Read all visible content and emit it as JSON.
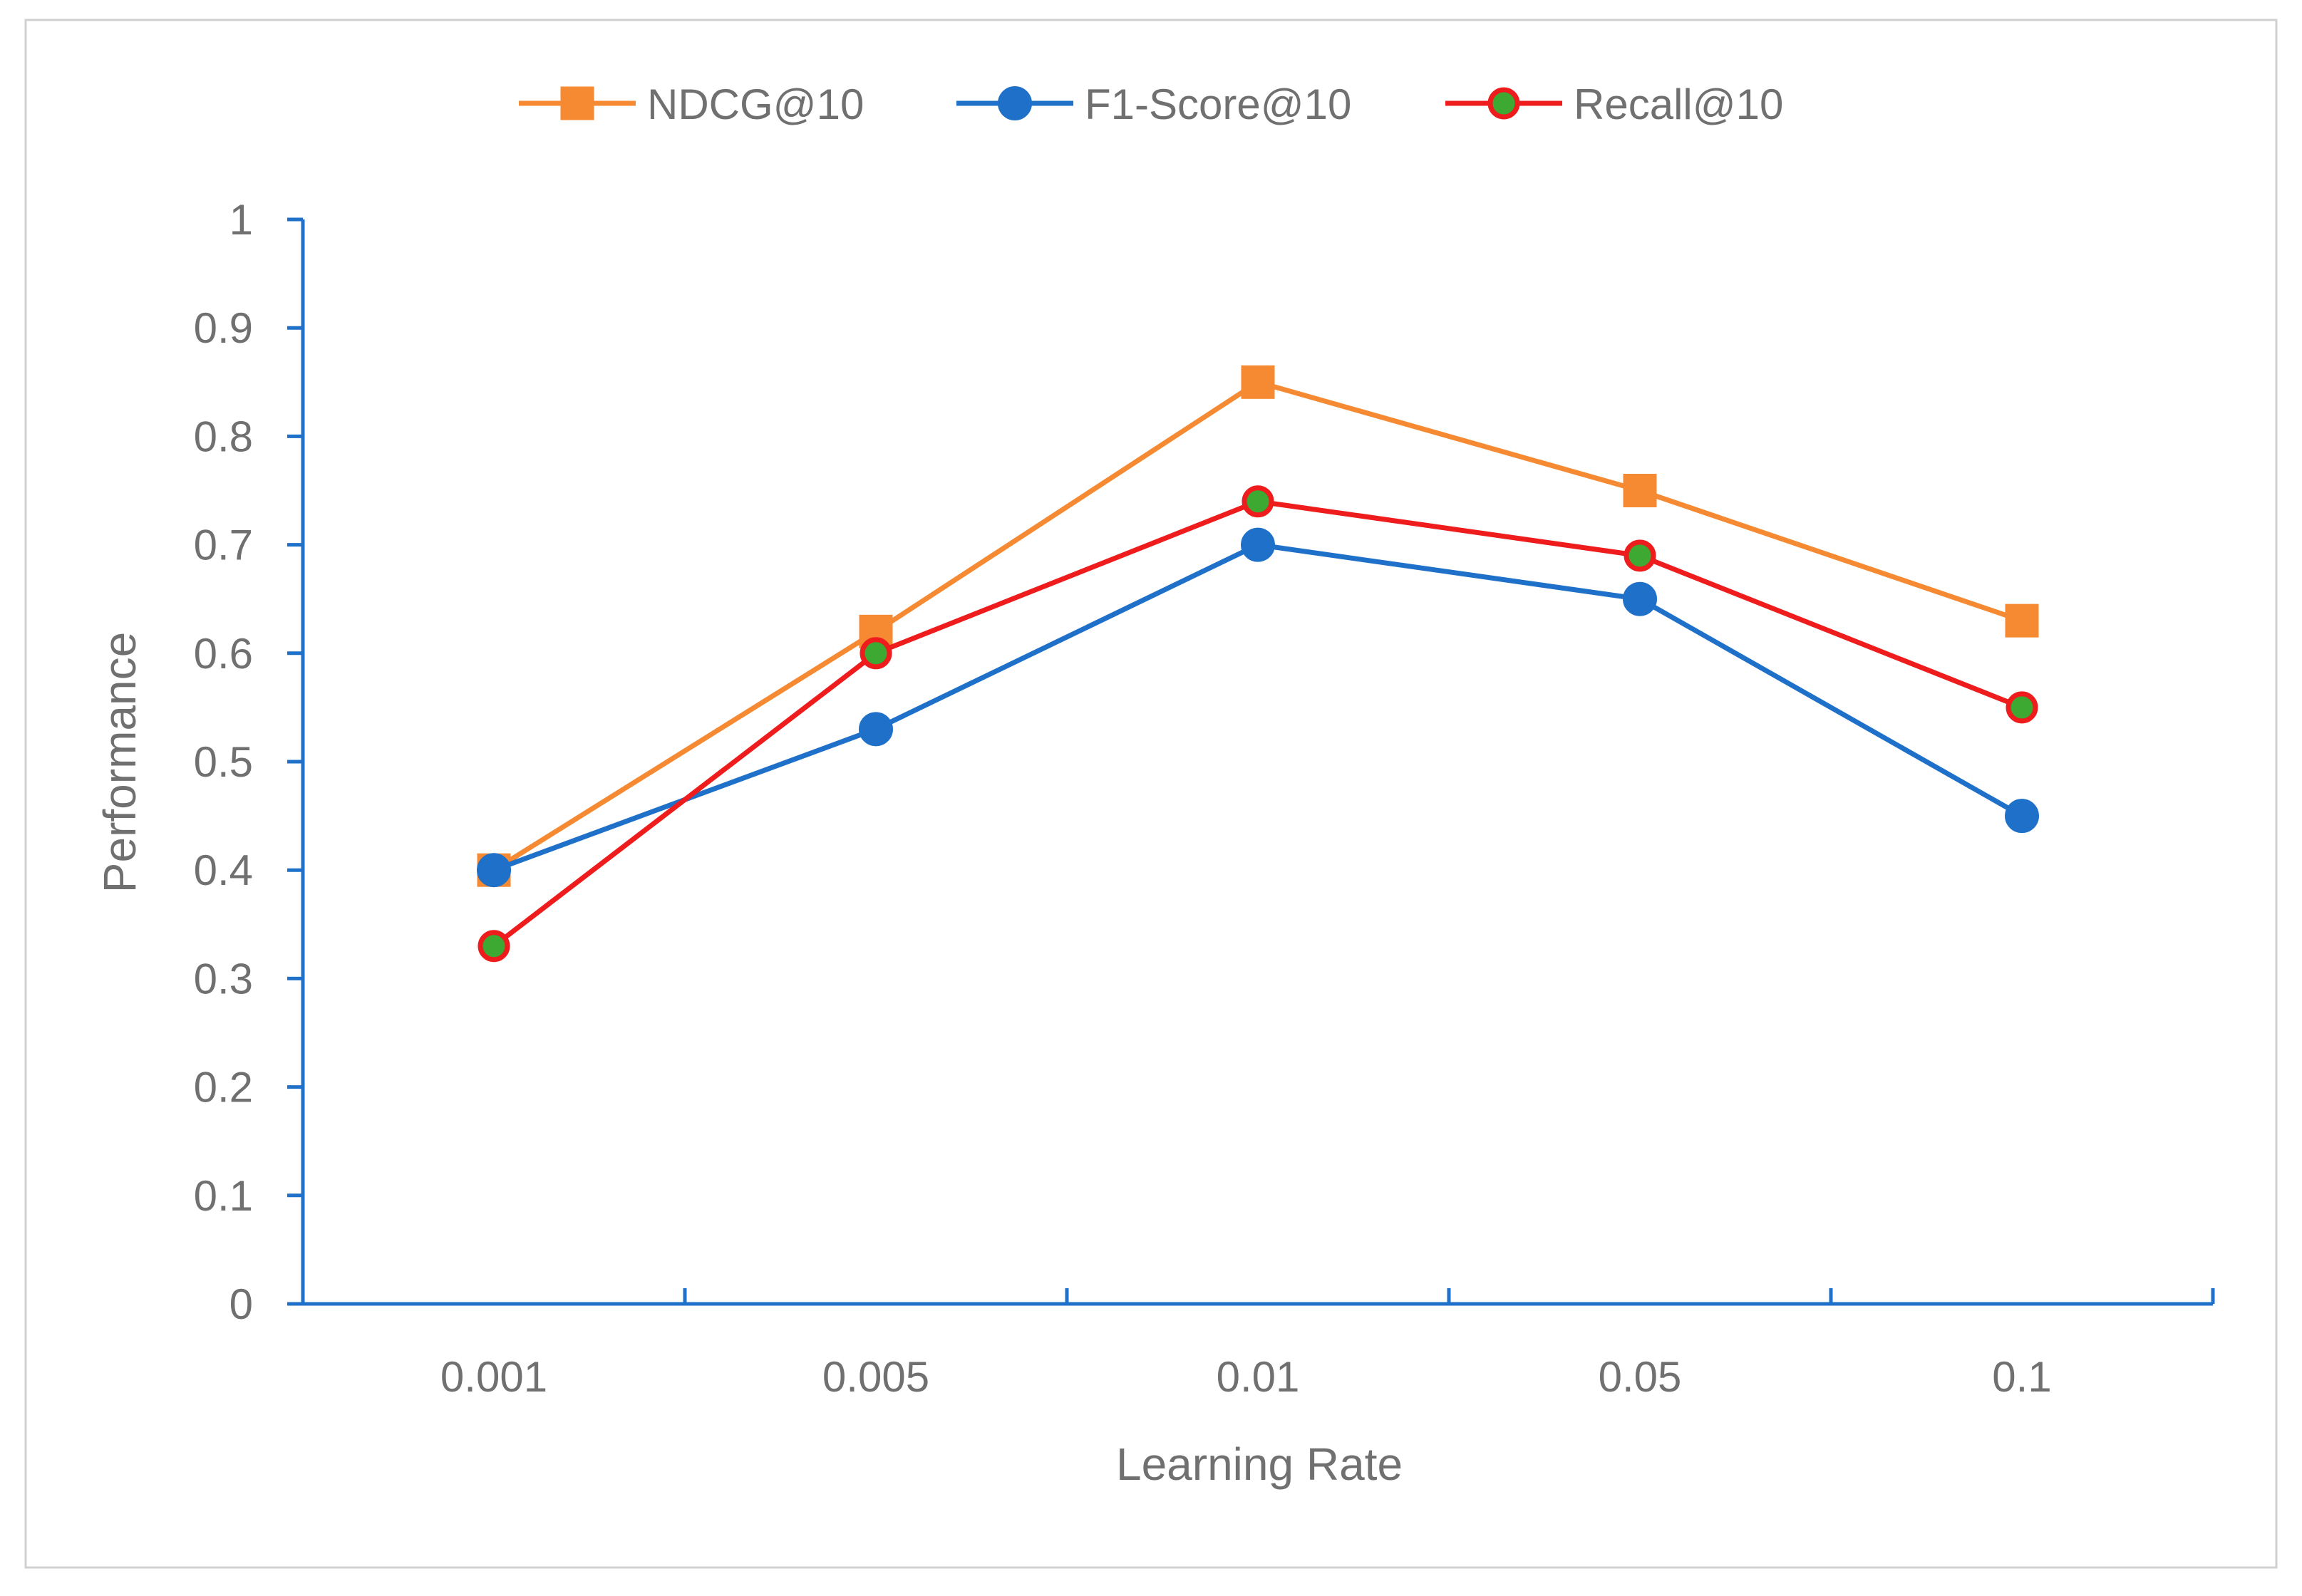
{
  "chart_data": {
    "type": "line",
    "title": "",
    "xlabel": "Learning Rate",
    "ylabel": "Performance",
    "categories": [
      "0.001",
      "0.005",
      "0.01",
      "0.05",
      "0.1"
    ],
    "ylim": [
      0,
      1
    ],
    "yticks": [
      "0",
      "0.1",
      "0.2",
      "0.3",
      "0.4",
      "0.5",
      "0.6",
      "0.7",
      "0.8",
      "0.9",
      "1"
    ],
    "grid": false,
    "legend_position": "top-center",
    "series": [
      {
        "name": "NDCG@10",
        "values": [
          0.4,
          0.62,
          0.85,
          0.75,
          0.63
        ],
        "color": "#F58A32",
        "marker": "square",
        "marker_fill": "#F58A32",
        "marker_stroke": "#F58A32"
      },
      {
        "name": "F1-Score@10",
        "values": [
          0.4,
          0.53,
          0.7,
          0.65,
          0.45
        ],
        "color": "#1E70C8",
        "marker": "circle",
        "marker_fill": "#1E70C8",
        "marker_stroke": "#1E70C8"
      },
      {
        "name": "Recall@10",
        "values": [
          0.33,
          0.6,
          0.74,
          0.69,
          0.55
        ],
        "color": "#EE1C1C",
        "marker": "circle",
        "marker_fill": "#3DA832",
        "marker_stroke": "#EE1C1C"
      }
    ],
    "axis_color": "#1E70C8",
    "text_color": "#707070"
  }
}
